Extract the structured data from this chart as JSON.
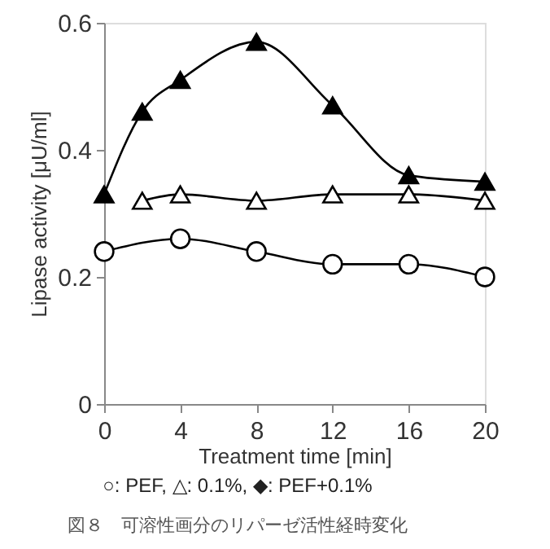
{
  "chart_data": {
    "type": "line",
    "xlabel": "Treatment time [min]",
    "ylabel": "Lipase activity [μU/ml]",
    "xlim": [
      0,
      20
    ],
    "xticks": [
      0,
      4,
      8,
      12,
      16,
      20
    ],
    "ylim": [
      0,
      0.6
    ],
    "yticks": [
      0,
      0.2,
      0.4,
      0.6
    ],
    "grid": false,
    "series": [
      {
        "color": "#000000",
        "marker": "circle",
        "colors": [
          "#ffffff",
          "#ffffff",
          "#ffffff",
          "#ffffff",
          "#ffffff",
          "#ffffff"
        ],
        "x": [
          0,
          4,
          8,
          12,
          16,
          20
        ],
        "values": [
          0.24,
          0.26,
          0.24,
          0.22,
          0.22,
          0.2
        ]
      },
      {
        "color": "#000000",
        "marker": "triangle",
        "colors": [
          "#ffffff",
          "#ffffff",
          "#ffffff",
          "#ffffff",
          "#ffffff",
          "#ffffff"
        ],
        "x": [
          2,
          4,
          8,
          12,
          16,
          20
        ],
        "values": [
          0.32,
          0.33,
          0.32,
          0.33,
          0.33,
          0.32
        ]
      },
      {
        "color": "#000000",
        "marker": "triangle",
        "x": [
          0,
          2,
          4,
          8,
          12,
          16,
          20
        ],
        "values": [
          0.33,
          0.46,
          0.51,
          0.57,
          0.47,
          0.36,
          0.35
        ]
      }
    ],
    "annotations": [
      "○: PEF, △: 0.1%, ◆: PEF+0.1%",
      "図８　可溶性画分のリパーゼ活性経時変化"
    ]
  }
}
